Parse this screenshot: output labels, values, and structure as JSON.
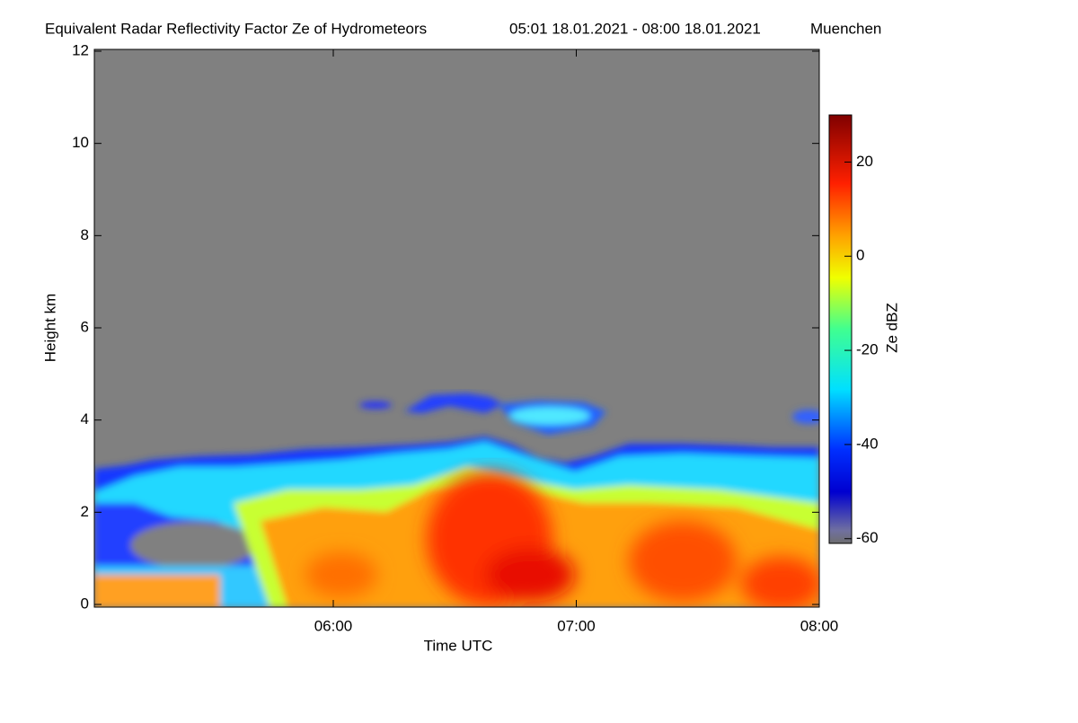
{
  "chart_data": {
    "type": "heatmap",
    "title": "Equivalent Radar Reflectivity Factor Ze of Hydrometeors",
    "period": "05:01 18.01.2021 - 08:00 18.01.2021",
    "location": "Muenchen",
    "x_label": "Time UTC",
    "y_label": "Height km",
    "colorbar_label": "Ze dBZ",
    "xlim": [
      "05:01",
      "08:00"
    ],
    "xticks": [
      "06:00",
      "07:00",
      "08:00"
    ],
    "ylim": [
      0,
      12
    ],
    "yticks": [
      0,
      2,
      4,
      6,
      8,
      10,
      12
    ],
    "clim": [
      -61,
      30
    ],
    "cticks": [
      -60,
      -40,
      -20,
      0,
      20
    ]
  }
}
